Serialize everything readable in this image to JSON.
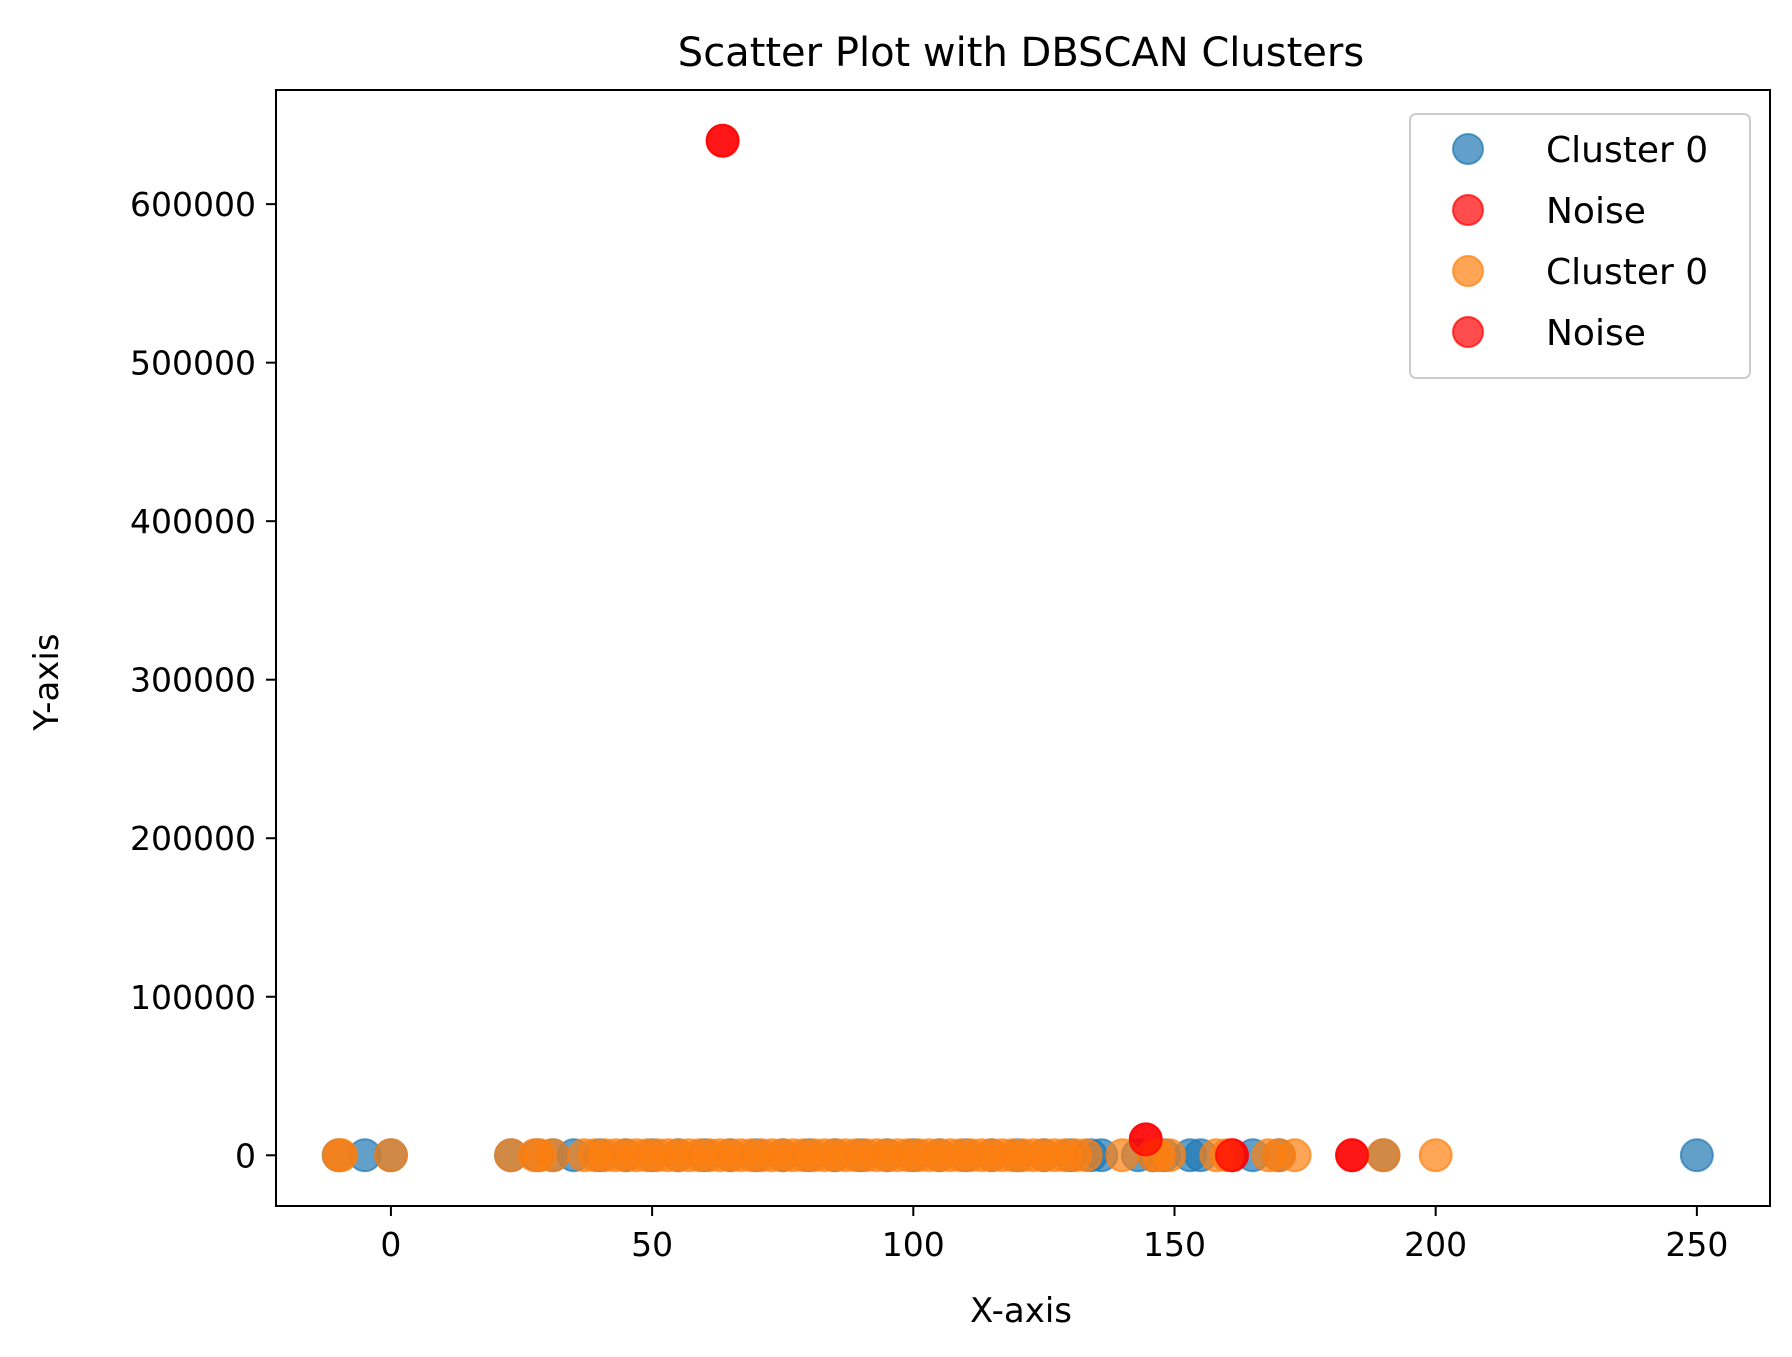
{
  "chart_data": {
    "type": "scatter",
    "title": "Scatter Plot with DBSCAN Clusters",
    "xlabel": "X-axis",
    "ylabel": "Y-axis",
    "xlim": [
      -22,
      264
    ],
    "ylim": [
      -32000,
      672000
    ],
    "x_ticks": [
      0,
      50,
      100,
      150,
      200,
      250
    ],
    "y_ticks": [
      0,
      100000,
      200000,
      300000,
      400000,
      500000,
      600000
    ],
    "grid": false,
    "legend_position": "top-right",
    "legend": [
      {
        "label": "Cluster 0",
        "color": "#1f77b4"
      },
      {
        "label": "Noise",
        "color": "#ff0000"
      },
      {
        "label": "Cluster 0",
        "color": "#ff7f0e"
      },
      {
        "label": "Noise",
        "color": "#ff0000"
      }
    ],
    "series": [
      {
        "name": "Cluster 0",
        "color": "#1f77b4",
        "alpha": 0.7,
        "points": [
          [
            -10,
            0
          ],
          [
            -5,
            0
          ],
          [
            0,
            0
          ],
          [
            23,
            0
          ],
          [
            28,
            0
          ],
          [
            31,
            0
          ],
          [
            35,
            0
          ],
          [
            40,
            0
          ],
          [
            45,
            0
          ],
          [
            50,
            0
          ],
          [
            55,
            0
          ],
          [
            60,
            0
          ],
          [
            65,
            0
          ],
          [
            70,
            0
          ],
          [
            75,
            0
          ],
          [
            80,
            0
          ],
          [
            85,
            0
          ],
          [
            90,
            0
          ],
          [
            95,
            0
          ],
          [
            100,
            0
          ],
          [
            105,
            0
          ],
          [
            110,
            0
          ],
          [
            115,
            0
          ],
          [
            120,
            0
          ],
          [
            125,
            0
          ],
          [
            130,
            0
          ],
          [
            134,
            0
          ],
          [
            136,
            0
          ],
          [
            143,
            0
          ],
          [
            146,
            0
          ],
          [
            148,
            0
          ],
          [
            153,
            0
          ],
          [
            155,
            0
          ],
          [
            165,
            0
          ],
          [
            170,
            0
          ],
          [
            190,
            0
          ],
          [
            250,
            0
          ]
        ]
      },
      {
        "name": "Noise",
        "color": "#ff0000",
        "alpha": 0.7,
        "points": [
          [
            63.5,
            640000
          ],
          [
            144.5,
            10000
          ],
          [
            161,
            0
          ],
          [
            184,
            0
          ]
        ]
      },
      {
        "name": "Cluster 0",
        "color": "#ff7f0e",
        "alpha": 0.7,
        "points": [
          [
            -10,
            0
          ],
          [
            -9.5,
            0
          ],
          [
            0,
            0
          ],
          [
            23,
            0
          ],
          [
            27.5,
            0
          ],
          [
            28.5,
            0
          ],
          [
            31,
            0
          ],
          [
            37,
            0
          ],
          [
            39,
            0
          ],
          [
            41,
            0
          ],
          [
            43,
            0
          ],
          [
            45,
            0
          ],
          [
            47,
            0
          ],
          [
            49,
            0
          ],
          [
            51,
            0
          ],
          [
            53,
            0
          ],
          [
            55,
            0
          ],
          [
            57,
            0
          ],
          [
            59,
            0
          ],
          [
            61,
            0
          ],
          [
            63,
            0
          ],
          [
            65,
            0
          ],
          [
            67,
            0
          ],
          [
            69,
            0
          ],
          [
            71,
            0
          ],
          [
            73,
            0
          ],
          [
            75,
            0
          ],
          [
            77,
            0
          ],
          [
            79,
            0
          ],
          [
            81,
            0
          ],
          [
            83,
            0
          ],
          [
            85,
            0
          ],
          [
            87,
            0
          ],
          [
            89,
            0
          ],
          [
            91,
            0
          ],
          [
            93,
            0
          ],
          [
            95,
            0
          ],
          [
            97,
            0
          ],
          [
            99,
            0
          ],
          [
            101,
            0
          ],
          [
            103,
            0
          ],
          [
            105,
            0
          ],
          [
            107,
            0
          ],
          [
            109,
            0
          ],
          [
            111,
            0
          ],
          [
            113,
            0
          ],
          [
            115,
            0
          ],
          [
            117,
            0
          ],
          [
            119,
            0
          ],
          [
            121,
            0
          ],
          [
            123,
            0
          ],
          [
            125,
            0
          ],
          [
            127,
            0
          ],
          [
            129,
            0
          ],
          [
            131,
            0
          ],
          [
            133,
            0
          ],
          [
            140,
            0
          ],
          [
            146,
            0
          ],
          [
            147,
            0
          ],
          [
            149,
            0
          ],
          [
            158,
            0
          ],
          [
            160,
            0
          ],
          [
            168,
            0
          ],
          [
            170,
            0
          ],
          [
            173,
            0
          ],
          [
            190,
            0
          ],
          [
            200,
            0
          ]
        ]
      },
      {
        "name": "Noise",
        "color": "#ff0000",
        "alpha": 0.7,
        "points": [
          [
            63.5,
            640000
          ],
          [
            144.5,
            10000
          ],
          [
            161,
            0
          ],
          [
            184,
            0
          ]
        ]
      }
    ]
  }
}
